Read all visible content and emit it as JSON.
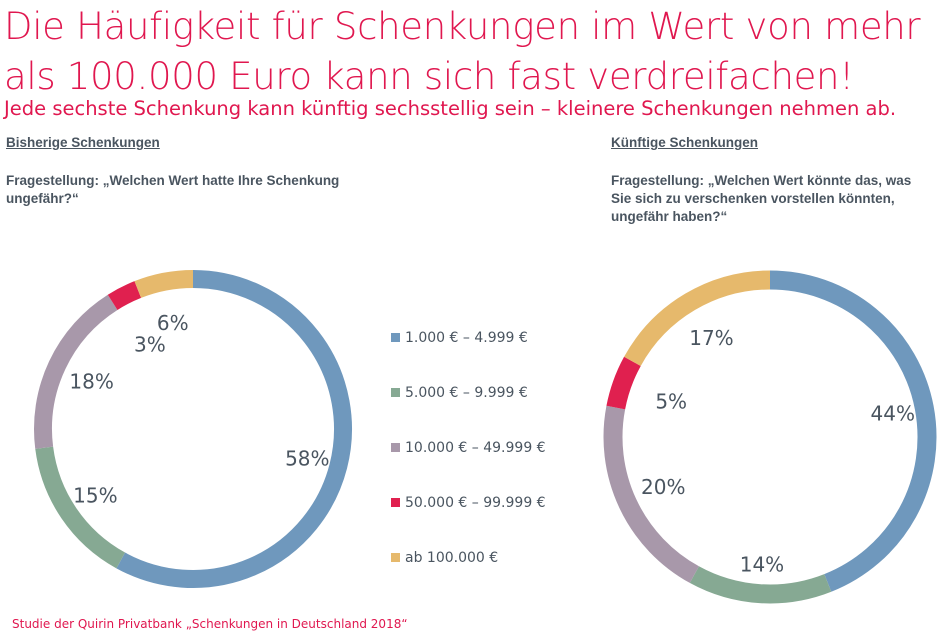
{
  "title": "Die Häufigkeit für Schenkungen im Wert von mehr als 100.000 Euro kann sich fast verdreifachen!",
  "subtitle": "Jede sechste Schenkung kann künftig sechsstellig sein – kleinere Schenkungen nehmen ab.",
  "left": {
    "heading": "Bisherige Schenkungen",
    "question": "Fragestellung: „Welchen Wert hatte Ihre Schenkung ungefähr?“"
  },
  "right": {
    "heading": "Künftige Schenkungen",
    "question": "Fragestellung: „Welchen Wert könnte das, was Sie sich zu verschenken vorstellen könnten, ungefähr haben?“"
  },
  "footer": "Studie der Quirin Privatbank „Schenkungen in Deutschland 2018“",
  "chart_data": [
    {
      "type": "pie",
      "title": "Bisherige Schenkungen",
      "categories": [
        "1.000 € – 4.999 €",
        "5.000 € – 9.999 €",
        "10.000 € – 49.999 €",
        "50.000 € – 99.999 €",
        "ab 100.000 €"
      ],
      "values": [
        58,
        15,
        18,
        3,
        6
      ],
      "labels": [
        "58%",
        "15%",
        "18%",
        "3%",
        "6%"
      ]
    },
    {
      "type": "pie",
      "title": "Künftige Schenkungen",
      "categories": [
        "1.000 € – 4.999 €",
        "5.000 € – 9.999 €",
        "10.000 € – 49.999 €",
        "50.000 € – 99.999 €",
        "ab 100.000 €"
      ],
      "values": [
        44,
        14,
        20,
        5,
        17
      ],
      "labels": [
        "44%",
        "14%",
        "20%",
        "5%",
        "17%"
      ]
    }
  ],
  "legend": [
    {
      "label": "1.000 € – 4.999 €",
      "color": "#6f98bd"
    },
    {
      "label": "5.000 € – 9.999 €",
      "color": "#86a993"
    },
    {
      "label": "10.000 € – 49.999 €",
      "color": "#a898aa"
    },
    {
      "label": "50.000 € – 99.999 €",
      "color": "#e0204f"
    },
    {
      "label": "ab 100.000 €",
      "color": "#e6b96c"
    }
  ]
}
